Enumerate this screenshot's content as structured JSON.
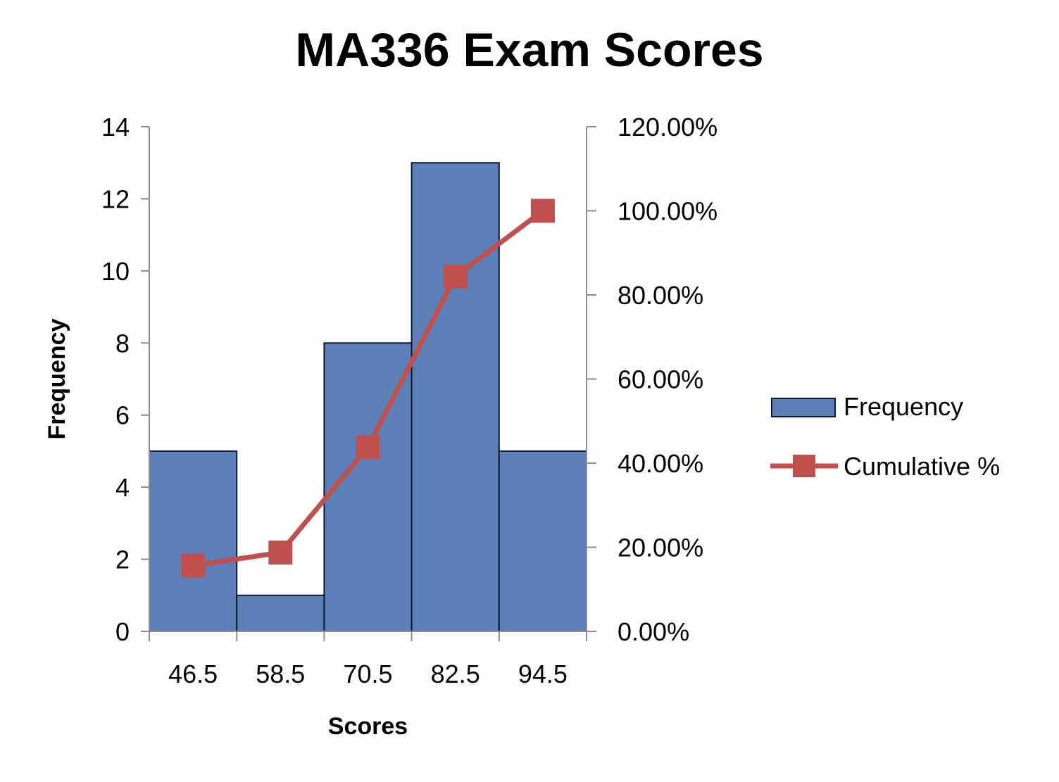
{
  "chart_data": {
    "type": "bar",
    "title": "MA336 Exam Scores",
    "xlabel": "Scores",
    "ylabel": "Frequency",
    "categories": [
      "46.5",
      "58.5",
      "70.5",
      "82.5",
      "94.5"
    ],
    "series": [
      {
        "name": "Frequency",
        "type": "bar",
        "axis": "left",
        "values": [
          5,
          1,
          8,
          13,
          5
        ],
        "color": "#5b7fb6"
      },
      {
        "name": "Cumulative %",
        "type": "line",
        "axis": "right",
        "values": [
          15.625,
          18.75,
          43.75,
          84.375,
          100
        ],
        "color": "#c0504d"
      }
    ],
    "ylim": [
      0,
      14
    ],
    "yticks": [
      "0",
      "2",
      "4",
      "6",
      "8",
      "10",
      "12",
      "14"
    ],
    "y2lim": [
      0,
      120
    ],
    "y2ticks": [
      "0.00%",
      "20.00%",
      "40.00%",
      "60.00%",
      "80.00%",
      "100.00%",
      "120.00%"
    ],
    "grid": false,
    "legend_position": "right"
  }
}
